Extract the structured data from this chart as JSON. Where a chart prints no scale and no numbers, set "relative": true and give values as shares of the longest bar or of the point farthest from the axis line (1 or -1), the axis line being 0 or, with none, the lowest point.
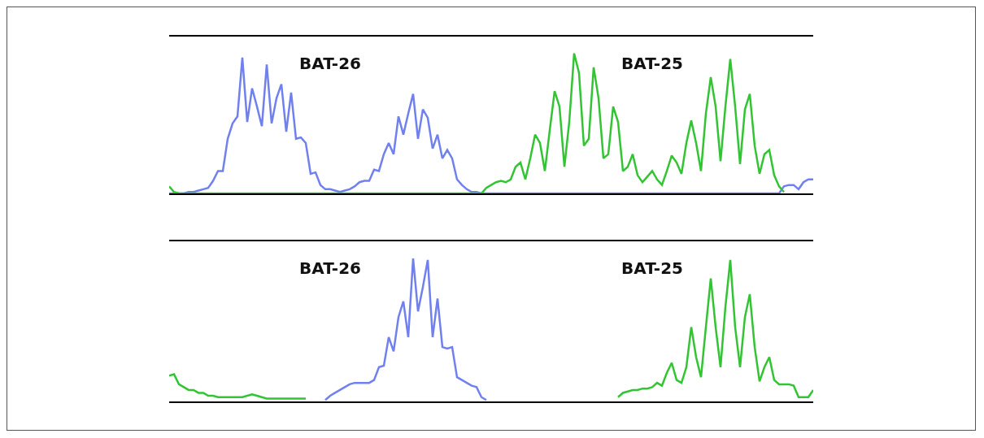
{
  "chart_data": [
    {
      "type": "line",
      "relative": true,
      "annotations": [
        "BAT-26",
        "BAT-25"
      ],
      "categories": [
        null,
        null,
        null,
        null,
        null,
        null,
        null,
        null,
        null,
        null,
        null,
        null,
        null,
        null,
        null,
        null,
        null,
        null,
        null,
        null,
        null,
        null,
        null,
        null,
        null,
        null,
        null,
        null,
        null,
        null,
        null,
        null,
        null,
        null,
        null,
        null,
        null,
        null,
        null,
        null,
        null,
        null,
        null,
        null,
        null,
        null,
        null,
        null,
        null,
        null,
        null,
        null,
        null,
        null,
        null,
        null,
        null,
        null,
        null,
        null,
        null,
        null,
        null,
        null,
        null,
        null,
        null,
        null,
        null,
        null,
        null,
        null,
        null,
        null,
        null,
        null,
        null,
        null,
        null,
        null,
        null,
        null,
        null,
        null,
        null,
        null,
        null,
        null,
        null,
        null,
        null,
        null,
        null,
        null,
        null,
        null,
        null,
        null,
        null,
        null,
        null,
        null,
        null,
        null,
        null,
        null,
        null,
        null,
        null,
        null,
        null,
        null,
        null,
        null,
        null,
        null,
        null,
        null,
        null,
        null,
        null,
        null,
        null,
        null,
        null,
        null,
        null,
        null,
        null,
        null,
        null,
        null,
        null
      ],
      "series": [
        {
          "color": "#7080ee",
          "values": [
            0,
            0,
            0,
            0,
            0.01,
            0.01,
            0.02,
            0.03,
            0.04,
            0.09,
            0.16,
            0.16,
            0.39,
            0.5,
            0.55,
            0.97,
            0.51,
            0.75,
            0.62,
            0.48,
            0.92,
            0.5,
            0.68,
            0.78,
            0.44,
            0.72,
            0.39,
            0.4,
            0.36,
            0.14,
            0.15,
            0.06,
            0.03,
            0.03,
            0.02,
            0.01,
            0.02,
            0.03,
            0.05,
            0.08,
            0.09,
            0.09,
            0.17,
            0.16,
            0.28,
            0.36,
            0.28,
            0.55,
            0.42,
            0.57,
            0.71,
            0.39,
            0.6,
            0.54,
            0.32,
            0.42,
            0.25,
            0.31,
            0.25,
            0.1,
            0.06,
            0.03,
            0.01,
            0.01,
            0,
            0,
            0,
            0,
            0,
            0,
            0,
            0,
            0,
            0,
            0,
            0,
            0,
            0,
            0,
            0,
            0,
            0,
            0,
            0,
            0,
            0,
            0,
            0,
            0,
            0,
            0,
            0,
            0,
            0,
            0,
            0,
            0,
            0,
            0,
            0,
            0,
            0,
            0,
            0,
            0,
            0,
            0,
            0,
            0,
            0,
            0,
            0,
            0,
            0,
            0,
            0,
            0,
            0,
            0,
            0,
            0,
            0,
            0,
            0,
            0,
            0,
            0.05,
            0.06,
            0.06,
            0.03,
            0.08,
            0.1,
            0.1
          ]
        },
        {
          "color": "#33c433",
          "values": [
            0.05,
            0.01,
            0,
            0,
            0,
            0,
            0,
            0,
            0,
            0,
            0,
            0,
            0,
            0,
            0,
            0,
            0,
            0,
            0,
            0,
            0,
            0,
            0,
            0,
            0,
            0,
            0,
            0,
            0,
            0,
            0,
            0,
            0,
            0,
            0,
            0,
            0,
            0,
            0,
            0,
            0,
            0,
            0,
            0,
            0,
            0,
            0,
            0,
            0,
            0,
            0,
            0,
            0,
            0,
            0,
            0,
            0,
            0,
            0,
            0,
            0,
            0,
            0,
            0,
            0,
            0.04,
            0.06,
            0.08,
            0.09,
            0.08,
            0.1,
            0.19,
            0.22,
            0.1,
            0.25,
            0.42,
            0.36,
            0.16,
            0.45,
            0.73,
            0.62,
            0.19,
            0.51,
            1,
            0.86,
            0.34,
            0.39,
            0.9,
            0.68,
            0.25,
            0.28,
            0.62,
            0.51,
            0.16,
            0.19,
            0.28,
            0.13,
            0.08,
            0.12,
            0.16,
            0.1,
            0.06,
            0.16,
            0.27,
            0.22,
            0.14,
            0.36,
            0.52,
            0.36,
            0.16,
            0.57,
            0.83,
            0.62,
            0.23,
            0.62,
            0.96,
            0.62,
            0.21,
            0.6,
            0.71,
            0.34,
            0.14,
            0.28,
            0.31,
            0.13,
            0.05,
            0.01,
            null,
            null,
            null,
            null,
            null,
            null
          ]
        }
      ]
    },
    {
      "type": "line",
      "relative": true,
      "annotations": [
        "BAT-26",
        "BAT-25"
      ],
      "categories": [
        null,
        null,
        null,
        null,
        null,
        null,
        null,
        null,
        null,
        null,
        null,
        null,
        null,
        null,
        null,
        null,
        null,
        null,
        null,
        null,
        null,
        null,
        null,
        null,
        null,
        null,
        null,
        null,
        null,
        null,
        null,
        null,
        null,
        null,
        null,
        null,
        null,
        null,
        null,
        null,
        null,
        null,
        null,
        null,
        null,
        null,
        null,
        null,
        null,
        null,
        null,
        null,
        null,
        null,
        null,
        null,
        null,
        null,
        null,
        null,
        null,
        null,
        null,
        null,
        null,
        null,
        null,
        null,
        null,
        null,
        null,
        null,
        null,
        null,
        null,
        null,
        null,
        null,
        null,
        null,
        null,
        null,
        null,
        null,
        null,
        null,
        null,
        null,
        null,
        null,
        null,
        null,
        null,
        null,
        null,
        null,
        null,
        null,
        null,
        null,
        null,
        null,
        null,
        null,
        null,
        null,
        null,
        null,
        null,
        null,
        null,
        null,
        null,
        null,
        null,
        null,
        null,
        null,
        null,
        null,
        null,
        null,
        null,
        null,
        null,
        null,
        null,
        null,
        null,
        null,
        null,
        null,
        null
      ],
      "series": [
        {
          "color": "#33c433",
          "values": [
            0.18,
            0.19,
            0.12,
            0.1,
            0.08,
            0.08,
            0.06,
            0.06,
            0.04,
            0.04,
            0.03,
            0.03,
            0.03,
            0.03,
            0.03,
            0.03,
            0.04,
            0.05,
            0.04,
            0.03,
            0.02,
            0.02,
            0.02,
            0.02,
            0.02,
            0.02,
            0.02,
            0.02,
            0.02,
            null,
            null,
            null,
            null,
            null,
            null,
            null,
            null,
            null,
            null,
            null,
            null,
            null,
            null,
            null,
            null,
            null,
            null,
            null,
            null,
            null,
            null,
            null,
            null,
            null,
            null,
            null,
            null,
            null,
            null,
            null,
            null,
            null,
            null,
            null,
            null,
            null,
            null,
            null,
            null,
            null,
            null,
            null,
            null,
            null,
            null,
            null,
            null,
            null,
            null,
            null,
            null,
            null,
            null,
            null,
            null,
            null,
            null,
            null,
            null,
            null,
            null,
            null,
            0.03,
            0.06,
            0.07,
            0.08,
            0.08,
            0.09,
            0.09,
            0.1,
            0.13,
            0.11,
            0.2,
            0.27,
            0.15,
            0.13,
            0.24,
            0.52,
            0.31,
            0.17,
            0.52,
            0.86,
            0.52,
            0.24,
            0.66,
            0.99,
            0.52,
            0.24,
            0.59,
            0.75,
            0.38,
            0.14,
            0.24,
            0.31,
            0.15,
            0.12,
            0.12,
            0.12,
            0.11,
            0.03,
            0.03,
            0.03,
            0.08
          ]
        },
        {
          "color": "#7080ee",
          "values": [
            null,
            null,
            null,
            null,
            null,
            null,
            null,
            null,
            null,
            null,
            null,
            null,
            null,
            null,
            null,
            null,
            null,
            null,
            null,
            null,
            null,
            null,
            null,
            null,
            null,
            null,
            null,
            null,
            null,
            null,
            null,
            null,
            0.01,
            0.04,
            0.06,
            0.08,
            0.1,
            0.12,
            0.13,
            0.13,
            0.13,
            0.13,
            0.15,
            0.24,
            0.25,
            0.45,
            0.35,
            0.59,
            0.7,
            0.45,
            1,
            0.63,
            0.8,
            0.99,
            0.45,
            0.72,
            0.38,
            0.37,
            0.38,
            0.17,
            0.15,
            0.13,
            0.11,
            0.1,
            0.03,
            0.01,
            null,
            null,
            null,
            null,
            null,
            null,
            null,
            null,
            null,
            null,
            null,
            null,
            null,
            null,
            null,
            null,
            null,
            null,
            null,
            null,
            null,
            null,
            null,
            null,
            null,
            null,
            null,
            null,
            null,
            null,
            null,
            null,
            null,
            null,
            null,
            null,
            null,
            null,
            null,
            null,
            null,
            null,
            null,
            null,
            null,
            null,
            null,
            null,
            null,
            null,
            null,
            null,
            null,
            null,
            null,
            null,
            null,
            null,
            null,
            null,
            null,
            null,
            null,
            null,
            null,
            null,
            null
          ]
        }
      ]
    }
  ]
}
